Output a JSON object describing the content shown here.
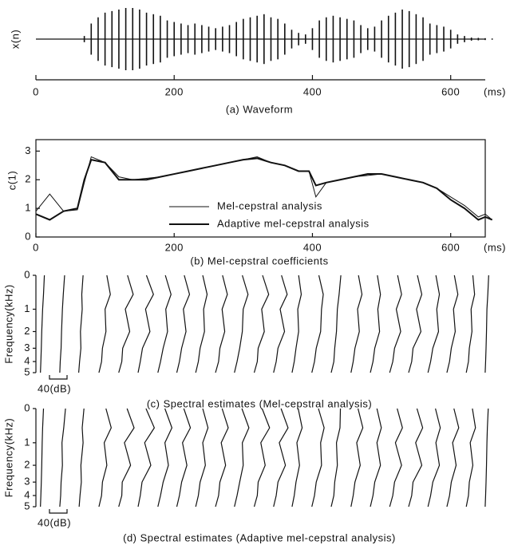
{
  "chart_data": [
    {
      "type": "waveform",
      "ylabel": "x(n)",
      "caption": "(a) Waveform",
      "xlabel": "(ms)",
      "color": "#111",
      "xlim": [
        0,
        650
      ],
      "xticks": [
        0,
        200,
        400,
        600
      ],
      "ylim": [
        -1,
        1
      ],
      "x": [
        0,
        10,
        20,
        30,
        40,
        50,
        60,
        70,
        80,
        90,
        100,
        110,
        120,
        130,
        140,
        150,
        160,
        170,
        180,
        190,
        200,
        210,
        220,
        230,
        240,
        250,
        260,
        270,
        280,
        290,
        300,
        310,
        320,
        330,
        340,
        350,
        360,
        370,
        380,
        390,
        400,
        410,
        420,
        430,
        440,
        450,
        460,
        470,
        480,
        490,
        500,
        510,
        520,
        530,
        540,
        550,
        560,
        570,
        580,
        590,
        600,
        610,
        620,
        630,
        640,
        650,
        660
      ],
      "values": [
        0,
        0,
        0,
        0,
        0,
        0,
        0,
        0.1,
        0.5,
        0.7,
        0.85,
        0.9,
        0.95,
        1,
        1,
        0.95,
        0.85,
        0.8,
        0.75,
        0.6,
        0.55,
        0.5,
        0.45,
        0.5,
        0.45,
        0.4,
        0.35,
        0.4,
        0.45,
        0.55,
        0.65,
        0.7,
        0.75,
        0.8,
        0.7,
        0.65,
        0.5,
        0.3,
        0.2,
        0.15,
        0.35,
        0.6,
        0.7,
        0.75,
        0.7,
        0.65,
        0.6,
        0.45,
        0.35,
        0.4,
        0.6,
        0.75,
        0.85,
        0.95,
        0.9,
        0.8,
        0.7,
        0.5,
        0.45,
        0.4,
        0.3,
        0.15,
        0.1,
        0.05,
        0.04,
        0.03,
        0.02
      ]
    },
    {
      "type": "line",
      "ylabel": "c(1)",
      "caption": "(b) Mel-cepstral coefficients",
      "xlabel": "(ms)",
      "xlim": [
        0,
        650
      ],
      "xticks": [
        0,
        200,
        400,
        600
      ],
      "ylim": [
        0,
        3.4
      ],
      "yticks": [
        0,
        1,
        2,
        3
      ],
      "x": [
        0,
        20,
        40,
        60,
        70,
        80,
        100,
        120,
        140,
        160,
        180,
        200,
        220,
        240,
        260,
        280,
        300,
        320,
        340,
        360,
        380,
        395,
        405,
        420,
        440,
        460,
        480,
        500,
        520,
        540,
        560,
        580,
        600,
        620,
        640,
        650,
        660
      ],
      "series": [
        {
          "name": "Mel-cepstral analysis",
          "color": "#111",
          "values": [
            0.9,
            1.5,
            0.9,
            0.95,
            1.9,
            2.8,
            2.6,
            2.1,
            2.0,
            2.05,
            2.1,
            2.2,
            2.3,
            2.4,
            2.5,
            2.6,
            2.7,
            2.8,
            2.6,
            2.5,
            2.3,
            2.3,
            1.4,
            1.9,
            2.0,
            2.1,
            2.15,
            2.2,
            2.1,
            2.0,
            1.9,
            1.7,
            1.4,
            1.1,
            0.7,
            0.8,
            0.6
          ]
        },
        {
          "name": "Adaptive mel-cepstral analysis",
          "color": "#111",
          "values": [
            0.8,
            0.6,
            0.9,
            1.0,
            2.0,
            2.7,
            2.6,
            2.0,
            2.0,
            2.0,
            2.1,
            2.2,
            2.3,
            2.4,
            2.5,
            2.6,
            2.7,
            2.75,
            2.6,
            2.5,
            2.3,
            2.3,
            1.8,
            1.9,
            2.0,
            2.1,
            2.2,
            2.2,
            2.1,
            2.0,
            1.9,
            1.7,
            1.3,
            1.0,
            0.6,
            0.7,
            0.6
          ]
        }
      ]
    },
    {
      "type": "waterfall",
      "ylabel": "Frequency(kHz)",
      "caption": "(c) Spectral estimates (Mel-cepstral analysis)",
      "yscale": "mel",
      "scale_label": "40(dB)",
      "scale_db": 40,
      "xlim": [
        0,
        650
      ],
      "ylim": [
        0,
        5
      ],
      "yticks": [
        0,
        1,
        2,
        3,
        4,
        5
      ],
      "freqs": [
        0,
        0.5,
        1,
        2,
        3,
        4,
        5
      ],
      "x": [
        0,
        28,
        56,
        84,
        112,
        140,
        168,
        196,
        224,
        252,
        280,
        308,
        336,
        364,
        392,
        420,
        448,
        476,
        504,
        532,
        560,
        588,
        616,
        644
      ],
      "frames": [
        [
          12,
          10,
          8,
          6,
          5,
          4,
          3
        ],
        [
          14,
          11,
          9,
          7,
          6,
          4,
          3
        ],
        [
          12,
          9,
          10,
          6,
          7,
          4,
          2
        ],
        [
          22,
          30,
          18,
          20,
          12,
          10,
          4
        ],
        [
          25,
          38,
          20,
          30,
          14,
          12,
          5
        ],
        [
          24,
          40,
          22,
          32,
          15,
          10,
          5
        ],
        [
          23,
          36,
          24,
          28,
          18,
          12,
          6
        ],
        [
          22,
          34,
          20,
          26,
          16,
          11,
          5
        ],
        [
          20,
          30,
          22,
          24,
          14,
          10,
          4
        ],
        [
          21,
          32,
          20,
          26,
          15,
          12,
          5
        ],
        [
          22,
          35,
          24,
          22,
          16,
          10,
          4
        ],
        [
          24,
          38,
          22,
          28,
          14,
          12,
          5
        ],
        [
          23,
          36,
          20,
          30,
          15,
          11,
          5
        ],
        [
          18,
          24,
          16,
          18,
          12,
          8,
          3
        ],
        [
          20,
          30,
          26,
          24,
          14,
          10,
          4
        ],
        [
          26,
          22,
          18,
          16,
          12,
          10,
          4
        ],
        [
          22,
          30,
          20,
          24,
          14,
          10,
          5
        ],
        [
          21,
          28,
          22,
          26,
          15,
          11,
          5
        ],
        [
          23,
          32,
          20,
          30,
          16,
          12,
          5
        ],
        [
          24,
          34,
          22,
          32,
          14,
          11,
          4
        ],
        [
          22,
          30,
          24,
          28,
          15,
          10,
          4
        ],
        [
          20,
          28,
          18,
          22,
          13,
          9,
          3
        ],
        [
          18,
          22,
          14,
          16,
          10,
          8,
          3
        ],
        [
          10,
          8,
          6,
          5,
          4,
          3,
          2
        ]
      ]
    },
    {
      "type": "waterfall",
      "ylabel": "Frequency(kHz)",
      "caption": "(d) Spectral estimates (Adaptive mel-cepstral analysis)",
      "yscale": "mel",
      "scale_label": "40(dB)",
      "scale_db": 40,
      "xlim": [
        0,
        650
      ],
      "ylim": [
        0,
        5
      ],
      "yticks": [
        0,
        1,
        2,
        3,
        4,
        5
      ],
      "freqs": [
        0,
        0.5,
        1,
        2,
        3,
        4,
        5
      ],
      "x": [
        0,
        28,
        56,
        84,
        112,
        140,
        168,
        196,
        224,
        252,
        280,
        308,
        336,
        364,
        392,
        420,
        448,
        476,
        504,
        532,
        560,
        588,
        616,
        644
      ],
      "frames": [
        [
          10,
          8,
          7,
          6,
          5,
          4,
          3
        ],
        [
          16,
          12,
          8,
          9,
          6,
          5,
          3
        ],
        [
          14,
          10,
          12,
          7,
          8,
          5,
          3
        ],
        [
          20,
          32,
          16,
          22,
          12,
          10,
          4
        ],
        [
          24,
          40,
          18,
          32,
          13,
          12,
          5
        ],
        [
          23,
          42,
          20,
          34,
          14,
          10,
          5
        ],
        [
          22,
          38,
          22,
          30,
          18,
          12,
          6
        ],
        [
          21,
          36,
          18,
          28,
          16,
          11,
          5
        ],
        [
          20,
          32,
          20,
          26,
          14,
          10,
          4
        ],
        [
          20,
          34,
          18,
          28,
          15,
          12,
          5
        ],
        [
          21,
          37,
          22,
          24,
          16,
          10,
          4
        ],
        [
          23,
          40,
          20,
          30,
          14,
          12,
          5
        ],
        [
          22,
          38,
          18,
          32,
          15,
          11,
          5
        ],
        [
          17,
          26,
          14,
          20,
          12,
          8,
          3
        ],
        [
          19,
          32,
          24,
          26,
          14,
          10,
          4
        ],
        [
          25,
          24,
          16,
          18,
          12,
          10,
          4
        ],
        [
          21,
          32,
          18,
          26,
          14,
          10,
          5
        ],
        [
          20,
          30,
          20,
          28,
          15,
          11,
          5
        ],
        [
          22,
          34,
          18,
          32,
          16,
          12,
          5
        ],
        [
          23,
          36,
          20,
          34,
          14,
          11,
          4
        ],
        [
          21,
          32,
          22,
          30,
          15,
          10,
          4
        ],
        [
          19,
          30,
          16,
          24,
          13,
          9,
          3
        ],
        [
          17,
          24,
          12,
          18,
          10,
          8,
          3
        ],
        [
          9,
          7,
          6,
          5,
          4,
          3,
          2
        ]
      ]
    }
  ]
}
